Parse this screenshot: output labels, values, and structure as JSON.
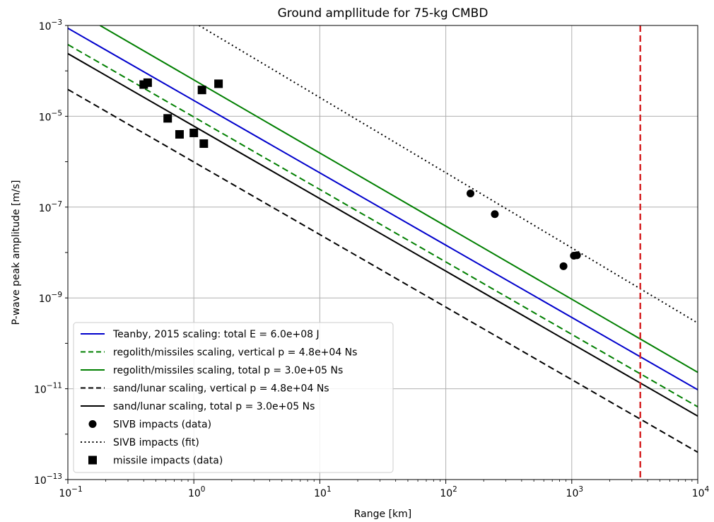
{
  "chart_data": {
    "type": "line",
    "title": "Ground ampllitude for 75-kg CMBD",
    "xlabel": "Range [km]",
    "ylabel": "P-wave peak amplitude [m/s]",
    "xscale": "log",
    "yscale": "log",
    "xlim": [
      0.1,
      10000
    ],
    "ylim": [
      1e-13,
      0.001
    ],
    "grid": true,
    "legend_position": "lower-left",
    "x_ticks": [
      {
        "value": 0.1,
        "base": "10",
        "exp": "−1"
      },
      {
        "value": 1,
        "base": "10",
        "exp": "0"
      },
      {
        "value": 10,
        "base": "10",
        "exp": "1"
      },
      {
        "value": 100,
        "base": "10",
        "exp": "2"
      },
      {
        "value": 1000,
        "base": "10",
        "exp": "3"
      },
      {
        "value": 10000,
        "base": "10",
        "exp": "4"
      }
    ],
    "y_ticks": [
      {
        "value": 1e-13,
        "base": "10",
        "exp": "−13"
      },
      {
        "value": 1e-11,
        "base": "10",
        "exp": "−11"
      },
      {
        "value": 1e-09,
        "base": "10",
        "exp": "−9"
      },
      {
        "value": 1e-07,
        "base": "10",
        "exp": "−7"
      },
      {
        "value": 1e-05,
        "base": "10",
        "exp": "−5"
      },
      {
        "value": 0.001,
        "base": "10",
        "exp": "−3"
      }
    ],
    "y_grid_values": [
      1e-13,
      1e-11,
      1e-09,
      1e-07,
      1e-05,
      0.001
    ],
    "series": [
      {
        "name": "Teanby, 2015 scaling: total E = 6.0e+08 J",
        "kind": "line",
        "style": "solid",
        "color": "#0000cc",
        "x": [
          0.1,
          10000
        ],
        "y": [
          0.00087,
          9.5e-12
        ]
      },
      {
        "name": "regolith/missiles scaling, vertical p = 4.8e+04 Ns",
        "kind": "line",
        "style": "dashed",
        "color": "#007f00",
        "x": [
          0.1,
          10000
        ],
        "y": [
          0.00038,
          4e-12
        ]
      },
      {
        "name": "regolith/missiles scaling, total p = 3.0e+05 Ns",
        "kind": "line",
        "style": "solid",
        "color": "#007f00",
        "x": [
          0.18,
          10000
        ],
        "y": [
          0.001,
          2.3e-11
        ]
      },
      {
        "name": "sand/lunar scaling, vertical p = 4.8e+04 Ns",
        "kind": "line",
        "style": "dashed",
        "color": "#000000",
        "x": [
          0.1,
          10000
        ],
        "y": [
          3.9e-05,
          4e-13
        ]
      },
      {
        "name": "sand/lunar scaling, total p = 3.0e+05 Ns",
        "kind": "line",
        "style": "solid",
        "color": "#000000",
        "x": [
          0.1,
          10000
        ],
        "y": [
          0.00024,
          2.5e-12
        ]
      },
      {
        "name": "SIVB impacts (data)",
        "kind": "scatter",
        "marker": "circle",
        "color": "#000000",
        "x": [
          157,
          245,
          860,
          1040,
          1100
        ],
        "y": [
          2e-07,
          7e-08,
          5e-09,
          8.5e-09,
          8.7e-09
        ]
      },
      {
        "name": "SIVB impacts (fit)",
        "kind": "line",
        "style": "dotted",
        "color": "#000000",
        "x": [
          1.1,
          10000
        ],
        "y": [
          0.001,
          2.8e-10
        ]
      },
      {
        "name": "missile impacts (data)",
        "kind": "scatter",
        "marker": "square",
        "color": "#000000",
        "x": [
          0.4,
          0.43,
          0.62,
          0.77,
          1.0,
          1.16,
          1.2,
          1.57
        ],
        "y": [
          5e-05,
          5.5e-05,
          9e-06,
          4e-06,
          4.3e-06,
          3.8e-05,
          2.5e-06,
          5.2e-05
        ]
      }
    ],
    "vertical_line": {
      "x": 3500,
      "style": "dashed",
      "color": "#d62728"
    }
  }
}
